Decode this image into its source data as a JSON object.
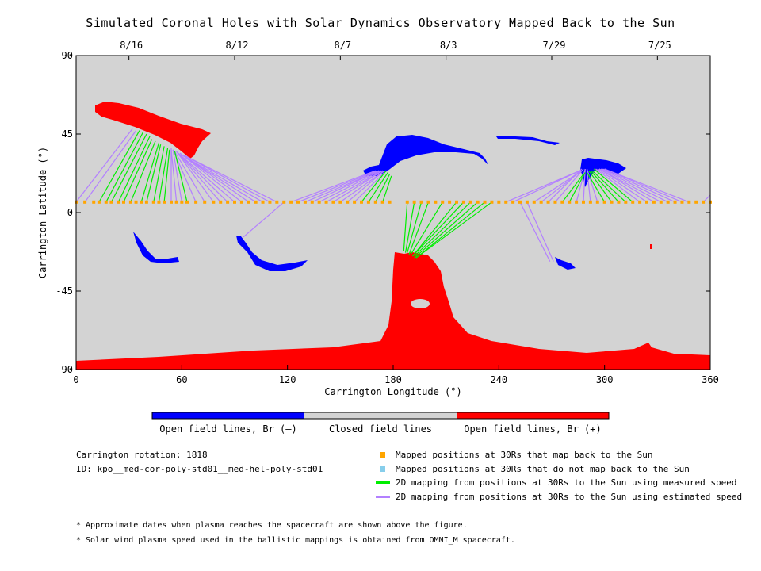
{
  "title": "Simulated Coronal Holes with Solar Dynamics Observatory Mapped Back to the Sun",
  "chart_data": {
    "type": "scatter",
    "xlabel": "Carrington Longitude (°)",
    "ylabel": "Carrington Latitude (°)",
    "xlim": [
      0,
      360
    ],
    "ylim": [
      -90,
      90
    ],
    "x_ticks": [
      "0",
      "60",
      "120",
      "180",
      "240",
      "300",
      "360"
    ],
    "y_ticks": [
      "90",
      "45",
      "0",
      "-45",
      "-90"
    ],
    "top_axis_dates": [
      {
        "label": "8/16",
        "lon": 30
      },
      {
        "label": "8/12",
        "lon": 90
      },
      {
        "label": "8/7",
        "lon": 150
      },
      {
        "label": "8/3",
        "lon": 210
      },
      {
        "label": "7/29",
        "lon": 270
      },
      {
        "label": "7/25",
        "lon": 330
      }
    ],
    "grid": false,
    "colorbar": [
      {
        "label": "Open field lines, Br (–)",
        "color": "#0000ff"
      },
      {
        "label": "Closed field lines",
        "color": "#d3d3d3"
      },
      {
        "label": "Open field lines, Br (+)",
        "color": "#ff0000"
      }
    ],
    "mapped_lat": 6,
    "mapped_positions_lon": [
      0,
      5,
      10,
      13,
      17,
      20,
      24,
      27,
      31,
      34,
      37,
      40,
      44,
      47,
      50,
      54,
      57,
      60,
      63,
      68,
      73,
      78,
      82,
      86,
      90,
      94,
      98,
      102,
      106,
      110,
      114,
      118,
      122,
      126,
      130,
      134,
      138,
      142,
      146,
      150,
      154,
      158,
      162,
      166,
      170,
      174,
      178,
      188,
      192,
      196,
      200,
      204,
      208,
      212,
      216,
      220,
      224,
      228,
      232,
      236,
      240,
      244,
      248,
      252,
      256,
      260,
      264,
      268,
      272,
      276,
      280,
      284,
      288,
      292,
      296,
      300,
      304,
      308,
      312,
      316,
      320,
      324,
      328,
      332,
      336,
      340,
      344,
      348,
      352,
      356,
      360
    ],
    "mapping_lines_measured": [
      {
        "from_lon": 13,
        "to_lon": 36,
        "to_lat": 47
      },
      {
        "from_lon": 17,
        "to_lon": 38,
        "to_lat": 46
      },
      {
        "from_lon": 20,
        "to_lon": 40,
        "to_lat": 45
      },
      {
        "from_lon": 24,
        "to_lon": 42,
        "to_lat": 44
      },
      {
        "from_lon": 27,
        "to_lon": 43,
        "to_lat": 42
      },
      {
        "from_lon": 31,
        "to_lon": 45,
        "to_lat": 41
      },
      {
        "from_lon": 37,
        "to_lon": 47,
        "to_lat": 40
      },
      {
        "from_lon": 40,
        "to_lon": 48,
        "to_lat": 39
      },
      {
        "from_lon": 44,
        "to_lon": 50,
        "to_lat": 38
      },
      {
        "from_lon": 47,
        "to_lon": 52,
        "to_lat": 37
      },
      {
        "from_lon": 50,
        "to_lon": 53,
        "to_lat": 36
      },
      {
        "from_lon": 63,
        "to_lon": 56,
        "to_lat": 35
      },
      {
        "from_lon": 162,
        "to_lon": 176,
        "to_lat": 24
      },
      {
        "from_lon": 166,
        "to_lon": 177,
        "to_lat": 23
      },
      {
        "from_lon": 170,
        "to_lon": 178,
        "to_lat": 22
      },
      {
        "from_lon": 174,
        "to_lon": 179,
        "to_lat": 21
      },
      {
        "from_lon": 188,
        "to_lon": 186,
        "to_lat": -22
      },
      {
        "from_lon": 192,
        "to_lon": 187,
        "to_lat": -23
      },
      {
        "from_lon": 196,
        "to_lon": 188,
        "to_lat": -23
      },
      {
        "from_lon": 200,
        "to_lon": 189,
        "to_lat": -24
      },
      {
        "from_lon": 208,
        "to_lon": 190,
        "to_lat": -24
      },
      {
        "from_lon": 216,
        "to_lon": 191,
        "to_lat": -25
      },
      {
        "from_lon": 220,
        "to_lon": 191,
        "to_lat": -25
      },
      {
        "from_lon": 224,
        "to_lon": 192,
        "to_lat": -25
      },
      {
        "from_lon": 228,
        "to_lon": 192,
        "to_lat": -26
      },
      {
        "from_lon": 232,
        "to_lon": 193,
        "to_lat": -26
      },
      {
        "from_lon": 236,
        "to_lon": 193,
        "to_lat": -26
      },
      {
        "from_lon": 276,
        "to_lon": 288,
        "to_lat": 22
      },
      {
        "from_lon": 280,
        "to_lon": 289,
        "to_lat": 23
      },
      {
        "from_lon": 300,
        "to_lon": 290,
        "to_lat": 23
      },
      {
        "from_lon": 304,
        "to_lon": 291,
        "to_lat": 24
      },
      {
        "from_lon": 308,
        "to_lon": 292,
        "to_lat": 24
      },
      {
        "from_lon": 312,
        "to_lon": 293,
        "to_lat": 24
      },
      {
        "from_lon": 316,
        "to_lon": 294,
        "to_lat": 25
      }
    ],
    "mapping_lines_estimated": [
      {
        "from_lon": 0,
        "to_lon": 32,
        "to_lat": 48
      },
      {
        "from_lon": 5,
        "to_lon": 34,
        "to_lat": 47
      },
      {
        "from_lon": 54,
        "to_lon": 54,
        "to_lat": 37
      },
      {
        "from_lon": 57,
        "to_lon": 54,
        "to_lat": 36
      },
      {
        "from_lon": 60,
        "to_lon": 55,
        "to_lat": 36
      },
      {
        "from_lon": 68,
        "to_lon": 55,
        "to_lat": 36
      },
      {
        "from_lon": 73,
        "to_lon": 56,
        "to_lat": 35
      },
      {
        "from_lon": 78,
        "to_lon": 57,
        "to_lat": 35
      },
      {
        "from_lon": 82,
        "to_lon": 57,
        "to_lat": 35
      },
      {
        "from_lon": 86,
        "to_lon": 58,
        "to_lat": 34
      },
      {
        "from_lon": 90,
        "to_lon": 58,
        "to_lat": 34
      },
      {
        "from_lon": 94,
        "to_lon": 59,
        "to_lat": 34
      },
      {
        "from_lon": 98,
        "to_lon": 59,
        "to_lat": 34
      },
      {
        "from_lon": 102,
        "to_lon": 60,
        "to_lat": 33
      },
      {
        "from_lon": 106,
        "to_lon": 60,
        "to_lat": 33
      },
      {
        "from_lon": 110,
        "to_lon": 61,
        "to_lat": 33
      },
      {
        "from_lon": 114,
        "to_lon": 61,
        "to_lat": 33
      },
      {
        "from_lon": 118,
        "to_lon": 95,
        "to_lat": -14
      },
      {
        "from_lon": 122,
        "to_lon": 170,
        "to_lat": 24
      },
      {
        "from_lon": 126,
        "to_lon": 171,
        "to_lat": 24
      },
      {
        "from_lon": 130,
        "to_lon": 172,
        "to_lat": 24
      },
      {
        "from_lon": 134,
        "to_lon": 172,
        "to_lat": 24
      },
      {
        "from_lon": 138,
        "to_lon": 173,
        "to_lat": 24
      },
      {
        "from_lon": 142,
        "to_lon": 174,
        "to_lat": 24
      },
      {
        "from_lon": 146,
        "to_lon": 174,
        "to_lat": 24
      },
      {
        "from_lon": 150,
        "to_lon": 175,
        "to_lat": 24
      },
      {
        "from_lon": 154,
        "to_lon": 175,
        "to_lat": 24
      },
      {
        "from_lon": 158,
        "to_lon": 176,
        "to_lat": 24
      },
      {
        "from_lon": 244,
        "to_lon": 286,
        "to_lat": 24
      },
      {
        "from_lon": 248,
        "to_lon": 286,
        "to_lat": 24
      },
      {
        "from_lon": 252,
        "to_lon": 269,
        "to_lat": -28
      },
      {
        "from_lon": 256,
        "to_lon": 271,
        "to_lat": -28
      },
      {
        "from_lon": 260,
        "to_lon": 287,
        "to_lat": 24
      },
      {
        "from_lon": 264,
        "to_lon": 287,
        "to_lat": 24
      },
      {
        "from_lon": 268,
        "to_lon": 287,
        "to_lat": 25
      },
      {
        "from_lon": 272,
        "to_lon": 288,
        "to_lat": 25
      },
      {
        "from_lon": 284,
        "to_lon": 289,
        "to_lat": 25
      },
      {
        "from_lon": 288,
        "to_lon": 289,
        "to_lat": 25
      },
      {
        "from_lon": 292,
        "to_lon": 290,
        "to_lat": 25
      },
      {
        "from_lon": 296,
        "to_lon": 290,
        "to_lat": 25
      },
      {
        "from_lon": 320,
        "to_lon": 295,
        "to_lat": 25
      },
      {
        "from_lon": 324,
        "to_lon": 296,
        "to_lat": 25
      },
      {
        "from_lon": 328,
        "to_lon": 297,
        "to_lat": 25
      },
      {
        "from_lon": 332,
        "to_lon": 297,
        "to_lat": 25
      },
      {
        "from_lon": 336,
        "to_lon": 298,
        "to_lat": 25
      },
      {
        "from_lon": 340,
        "to_lon": 299,
        "to_lat": 25
      },
      {
        "from_lon": 344,
        "to_lon": 300,
        "to_lat": 25
      },
      {
        "from_lon": 348,
        "to_lon": 300,
        "to_lat": 25
      },
      {
        "from_lon": 356,
        "to_lon": 360,
        "to_lat": 10
      }
    ]
  },
  "colorbar_labels": {
    "neg": "Open field lines, Br (–)",
    "closed": "Closed field lines",
    "pos": "Open field lines, Br (+)"
  },
  "info": {
    "rotation": "Carrington rotation: 1818",
    "id": "ID: kpo__med-cor-poly-std01__med-hel-poly-std01"
  },
  "legend": {
    "mapped": "Mapped positions at 30Rs that map back to the Sun",
    "not_mapped": "Mapped positions at 30Rs that do not map back to the Sun",
    "measured": "2D mapping from positions at 30Rs to the Sun using measured speed",
    "estimated": "2D mapping from positions at 30Rs to the Sun using estimated speed"
  },
  "colors": {
    "background_plot": "#d3d3d3",
    "negative": "#0000ff",
    "positive": "#ff0000",
    "mapped_point": "#ffa500",
    "not_mapped_point": "#87ceeb",
    "measured_line": "#00ee00",
    "estimated_line": "#b380ff"
  },
  "footnotes": {
    "note1": "* Approximate dates when plasma reaches the spacecraft are shown above the figure.",
    "note2": "* Solar wind plasma speed used in the ballistic mappings is obtained from OMNI_M spacecraft."
  }
}
